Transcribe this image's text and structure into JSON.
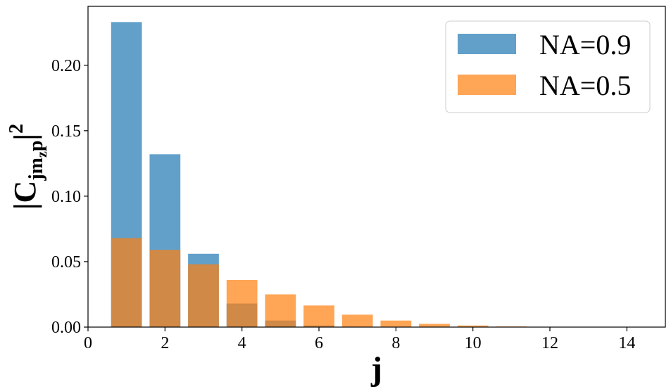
{
  "chart_data": {
    "type": "bar",
    "xlabel": "j",
    "ylabel": {
      "prefix": "|C",
      "subscript": "jm",
      "sub_subscript": "z",
      "subscript_tail": "p",
      "suffix": "|",
      "superscript": "2"
    },
    "xlim": [
      0,
      15
    ],
    "ylim": [
      0,
      0.245
    ],
    "xticks": [
      0,
      2,
      4,
      6,
      8,
      10,
      12,
      14
    ],
    "yticks": [
      0.0,
      0.05,
      0.1,
      0.15,
      0.2
    ],
    "xtick_labels": [
      "0",
      "2",
      "4",
      "6",
      "8",
      "10",
      "12",
      "14"
    ],
    "ytick_labels": [
      "0.00",
      "0.05",
      "0.10",
      "0.15",
      "0.20"
    ],
    "grid": false,
    "legend_position": "top-right",
    "bar_width": 0.8,
    "series": [
      {
        "name": "NA=0.9",
        "color": "#1f77b4",
        "opacity": 0.7,
        "x": [
          1,
          2,
          3,
          4,
          5,
          6,
          7,
          8,
          9,
          10,
          11,
          12,
          13,
          14
        ],
        "values": [
          0.233,
          0.132,
          0.056,
          0.018,
          0.005,
          0.0012,
          0.0003,
          0.0001,
          0,
          0,
          0,
          0,
          0,
          0
        ]
      },
      {
        "name": "NA=0.5",
        "color": "#ff7f0e",
        "opacity": 0.7,
        "x": [
          1,
          2,
          3,
          4,
          5,
          6,
          7,
          8,
          9,
          10,
          11,
          12,
          13,
          14
        ],
        "values": [
          0.068,
          0.059,
          0.048,
          0.036,
          0.025,
          0.0165,
          0.0095,
          0.005,
          0.0025,
          0.0012,
          0.0005,
          0.0002,
          0.0001,
          0
        ]
      }
    ]
  }
}
